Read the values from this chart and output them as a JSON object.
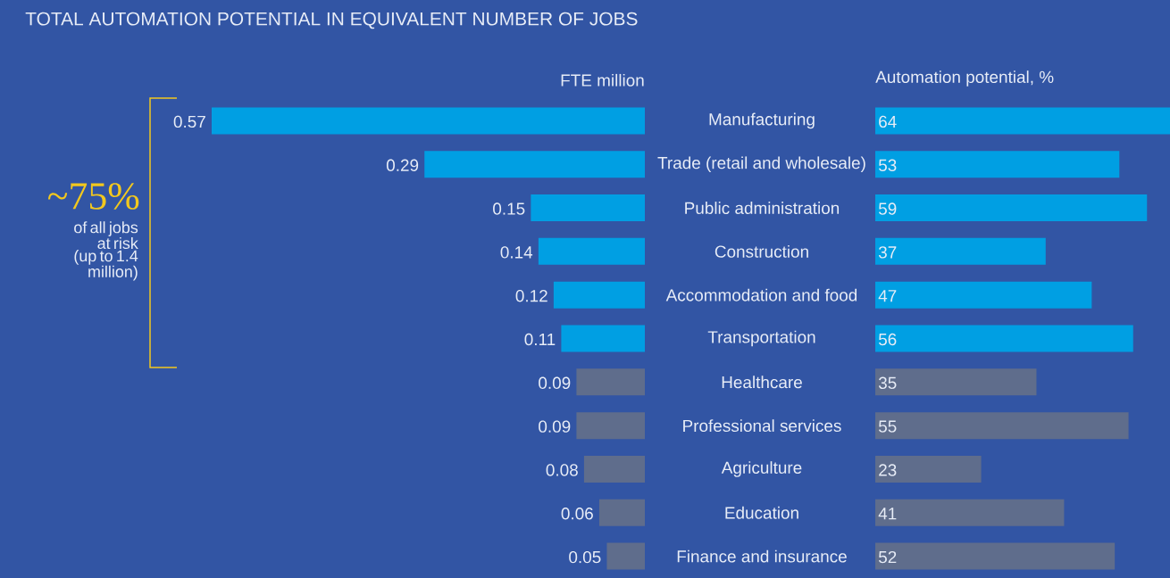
{
  "chart_data": [
    {
      "type": "bar",
      "orientation": "horizontal",
      "title": "TOTAL AUTOMATION POTENTIAL IN EQUIVALENT NUMBER OF JOBS",
      "xlabel": "FTE million",
      "categories": [
        "Manufacturing",
        "Trade (retail and wholesale)",
        "Public administration",
        "Construction",
        "Accommodation and food",
        "Transportation",
        "Healthcare",
        "Professional services",
        "Agriculture",
        "Education",
        "Finance and insurance"
      ],
      "values": [
        0.57,
        0.29,
        0.15,
        0.14,
        0.12,
        0.11,
        0.09,
        0.09,
        0.08,
        0.06,
        0.05
      ],
      "colors": [
        "#009fe3",
        "#009fe3",
        "#009fe3",
        "#009fe3",
        "#009fe3",
        "#009fe3",
        "#5f6d8c",
        "#5f6d8c",
        "#5f6d8c",
        "#5f6d8c",
        "#5f6d8c"
      ],
      "data_labels": true,
      "annotations": [
        "~75%",
        "of all jobs at risk (up to 1.4 million)"
      ]
    },
    {
      "type": "bar",
      "orientation": "horizontal",
      "xlabel": "Automation potential, %",
      "categories": [
        null,
        null,
        null,
        null,
        null,
        null,
        null,
        null,
        null,
        null,
        null
      ],
      "values": [
        64,
        53,
        59,
        37,
        47,
        56,
        35,
        55,
        23,
        41,
        52
      ],
      "colors": [
        "#009fe3",
        "#009fe3",
        "#009fe3",
        "#009fe3",
        "#009fe3",
        "#009fe3",
        "#5f6d8c",
        "#5f6d8c",
        "#5f6d8c",
        "#5f6d8c",
        "#5f6d8c"
      ],
      "data_labels": true
    }
  ]
}
